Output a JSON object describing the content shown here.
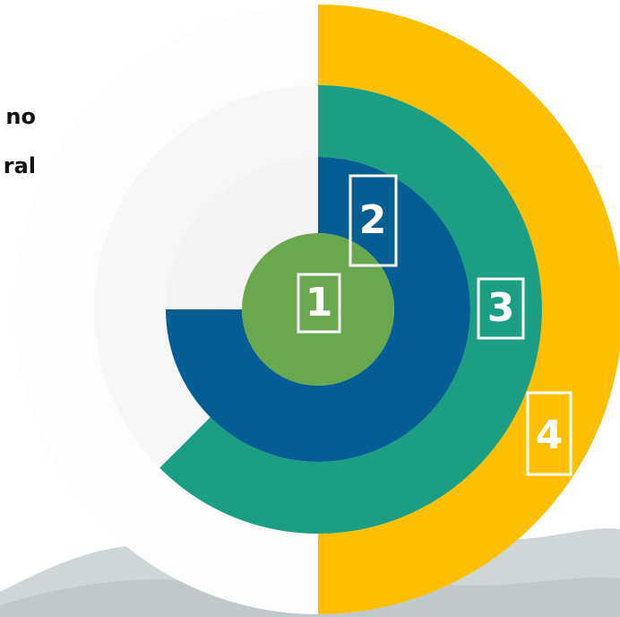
{
  "side_text": [
    "no",
    "ral"
  ],
  "labels": [
    "1",
    "2",
    "3",
    "4"
  ]
}
